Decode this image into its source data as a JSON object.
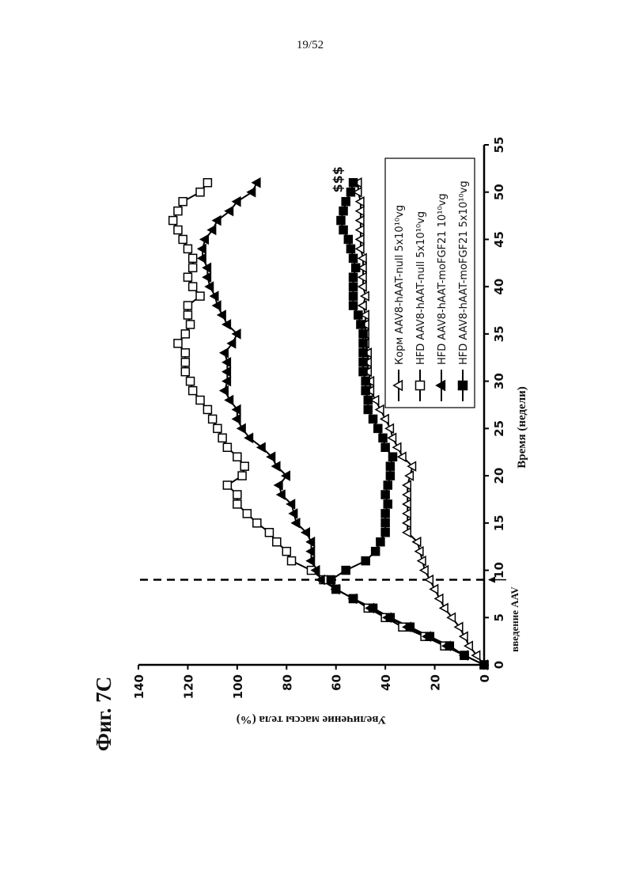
{
  "header": {
    "page": "19/52"
  },
  "figure_label": "Фиг. 7C",
  "chart_data": {
    "type": "line",
    "x_label": "Время (недели)",
    "y_label": "Увеличение массы тела (%)",
    "xlim": [
      0,
      55
    ],
    "xticks": [
      0,
      5,
      10,
      15,
      20,
      25,
      30,
      35,
      40,
      45,
      50,
      55
    ],
    "ylim": [
      0,
      140
    ],
    "yticks": [
      0,
      20,
      40,
      60,
      80,
      100,
      120,
      140
    ],
    "x": [
      0,
      1,
      2,
      3,
      4,
      5,
      6,
      7,
      8,
      9,
      10,
      11,
      12,
      13,
      14,
      15,
      16,
      17,
      18,
      19,
      20,
      21,
      22,
      23,
      24,
      25,
      26,
      27,
      28,
      29,
      30,
      31,
      32,
      33,
      34,
      35,
      36,
      37,
      38,
      39,
      40,
      41,
      42,
      43,
      44,
      45,
      46,
      47,
      48,
      49,
      50,
      51
    ],
    "series": [
      {
        "name": "Корм AAV8-hAAT-null 5x10¹⁰vg",
        "color": "#000000",
        "marker": "triangle",
        "filled": false,
        "values": [
          0,
          3,
          6,
          8,
          10,
          13,
          16,
          18,
          20,
          22,
          24,
          25,
          26,
          27,
          31,
          31,
          31,
          31,
          31,
          31,
          30,
          29,
          33,
          35,
          37,
          38,
          40,
          42,
          44,
          46,
          46,
          47,
          47,
          47,
          48,
          48,
          48,
          48,
          49,
          48,
          49,
          49,
          49,
          49,
          50,
          50,
          50,
          50,
          50,
          50,
          51,
          51
        ]
      },
      {
        "name": "HFD AAV8-hAAT-null 5x10¹⁰vg",
        "color": "#000000",
        "marker": "square",
        "filled": false,
        "values": [
          0,
          8,
          16,
          24,
          33,
          40,
          47,
          53,
          60,
          65,
          70,
          78,
          80,
          84,
          87,
          92,
          96,
          100,
          100,
          104,
          98,
          97,
          100,
          104,
          106,
          108,
          110,
          112,
          115,
          118,
          119,
          121,
          121,
          121,
          124,
          121,
          119,
          120,
          120,
          115,
          118,
          120,
          118,
          118,
          120,
          122,
          124,
          126,
          124,
          122,
          115,
          112
        ]
      },
      {
        "name": "HFD AAV8-hAAT-moFGF21 10¹⁰vg",
        "color": "#000000",
        "marker": "triangle",
        "filled": true,
        "values": [
          0,
          8,
          15,
          23,
          31,
          39,
          46,
          53,
          60,
          66,
          68,
          70,
          70,
          70,
          72,
          76,
          77,
          78,
          82,
          83,
          80,
          84,
          86,
          90,
          95,
          98,
          100,
          100,
          103,
          105,
          104,
          104,
          104,
          105,
          102,
          100,
          104,
          106,
          108,
          109,
          111,
          112,
          112,
          114,
          114,
          113,
          110,
          108,
          103,
          100,
          94,
          92
        ]
      },
      {
        "name": "HFD AAV8-hAAT-moFGF21 5x10¹⁰vg",
        "color": "#000000",
        "marker": "square",
        "filled": true,
        "values": [
          0,
          8,
          14,
          22,
          30,
          38,
          45,
          53,
          60,
          62,
          56,
          48,
          44,
          42,
          40,
          40,
          40,
          39,
          40,
          39,
          38,
          38,
          37,
          40,
          41,
          43,
          45,
          47,
          47,
          48,
          48,
          49,
          49,
          49,
          49,
          49,
          50,
          51,
          53,
          53,
          53,
          53,
          52,
          53,
          54,
          55,
          57,
          58,
          57,
          56,
          54,
          53
        ]
      }
    ],
    "annotations": {
      "significance": "$$$",
      "injection": "введение AAV",
      "injection_week": 9
    }
  }
}
